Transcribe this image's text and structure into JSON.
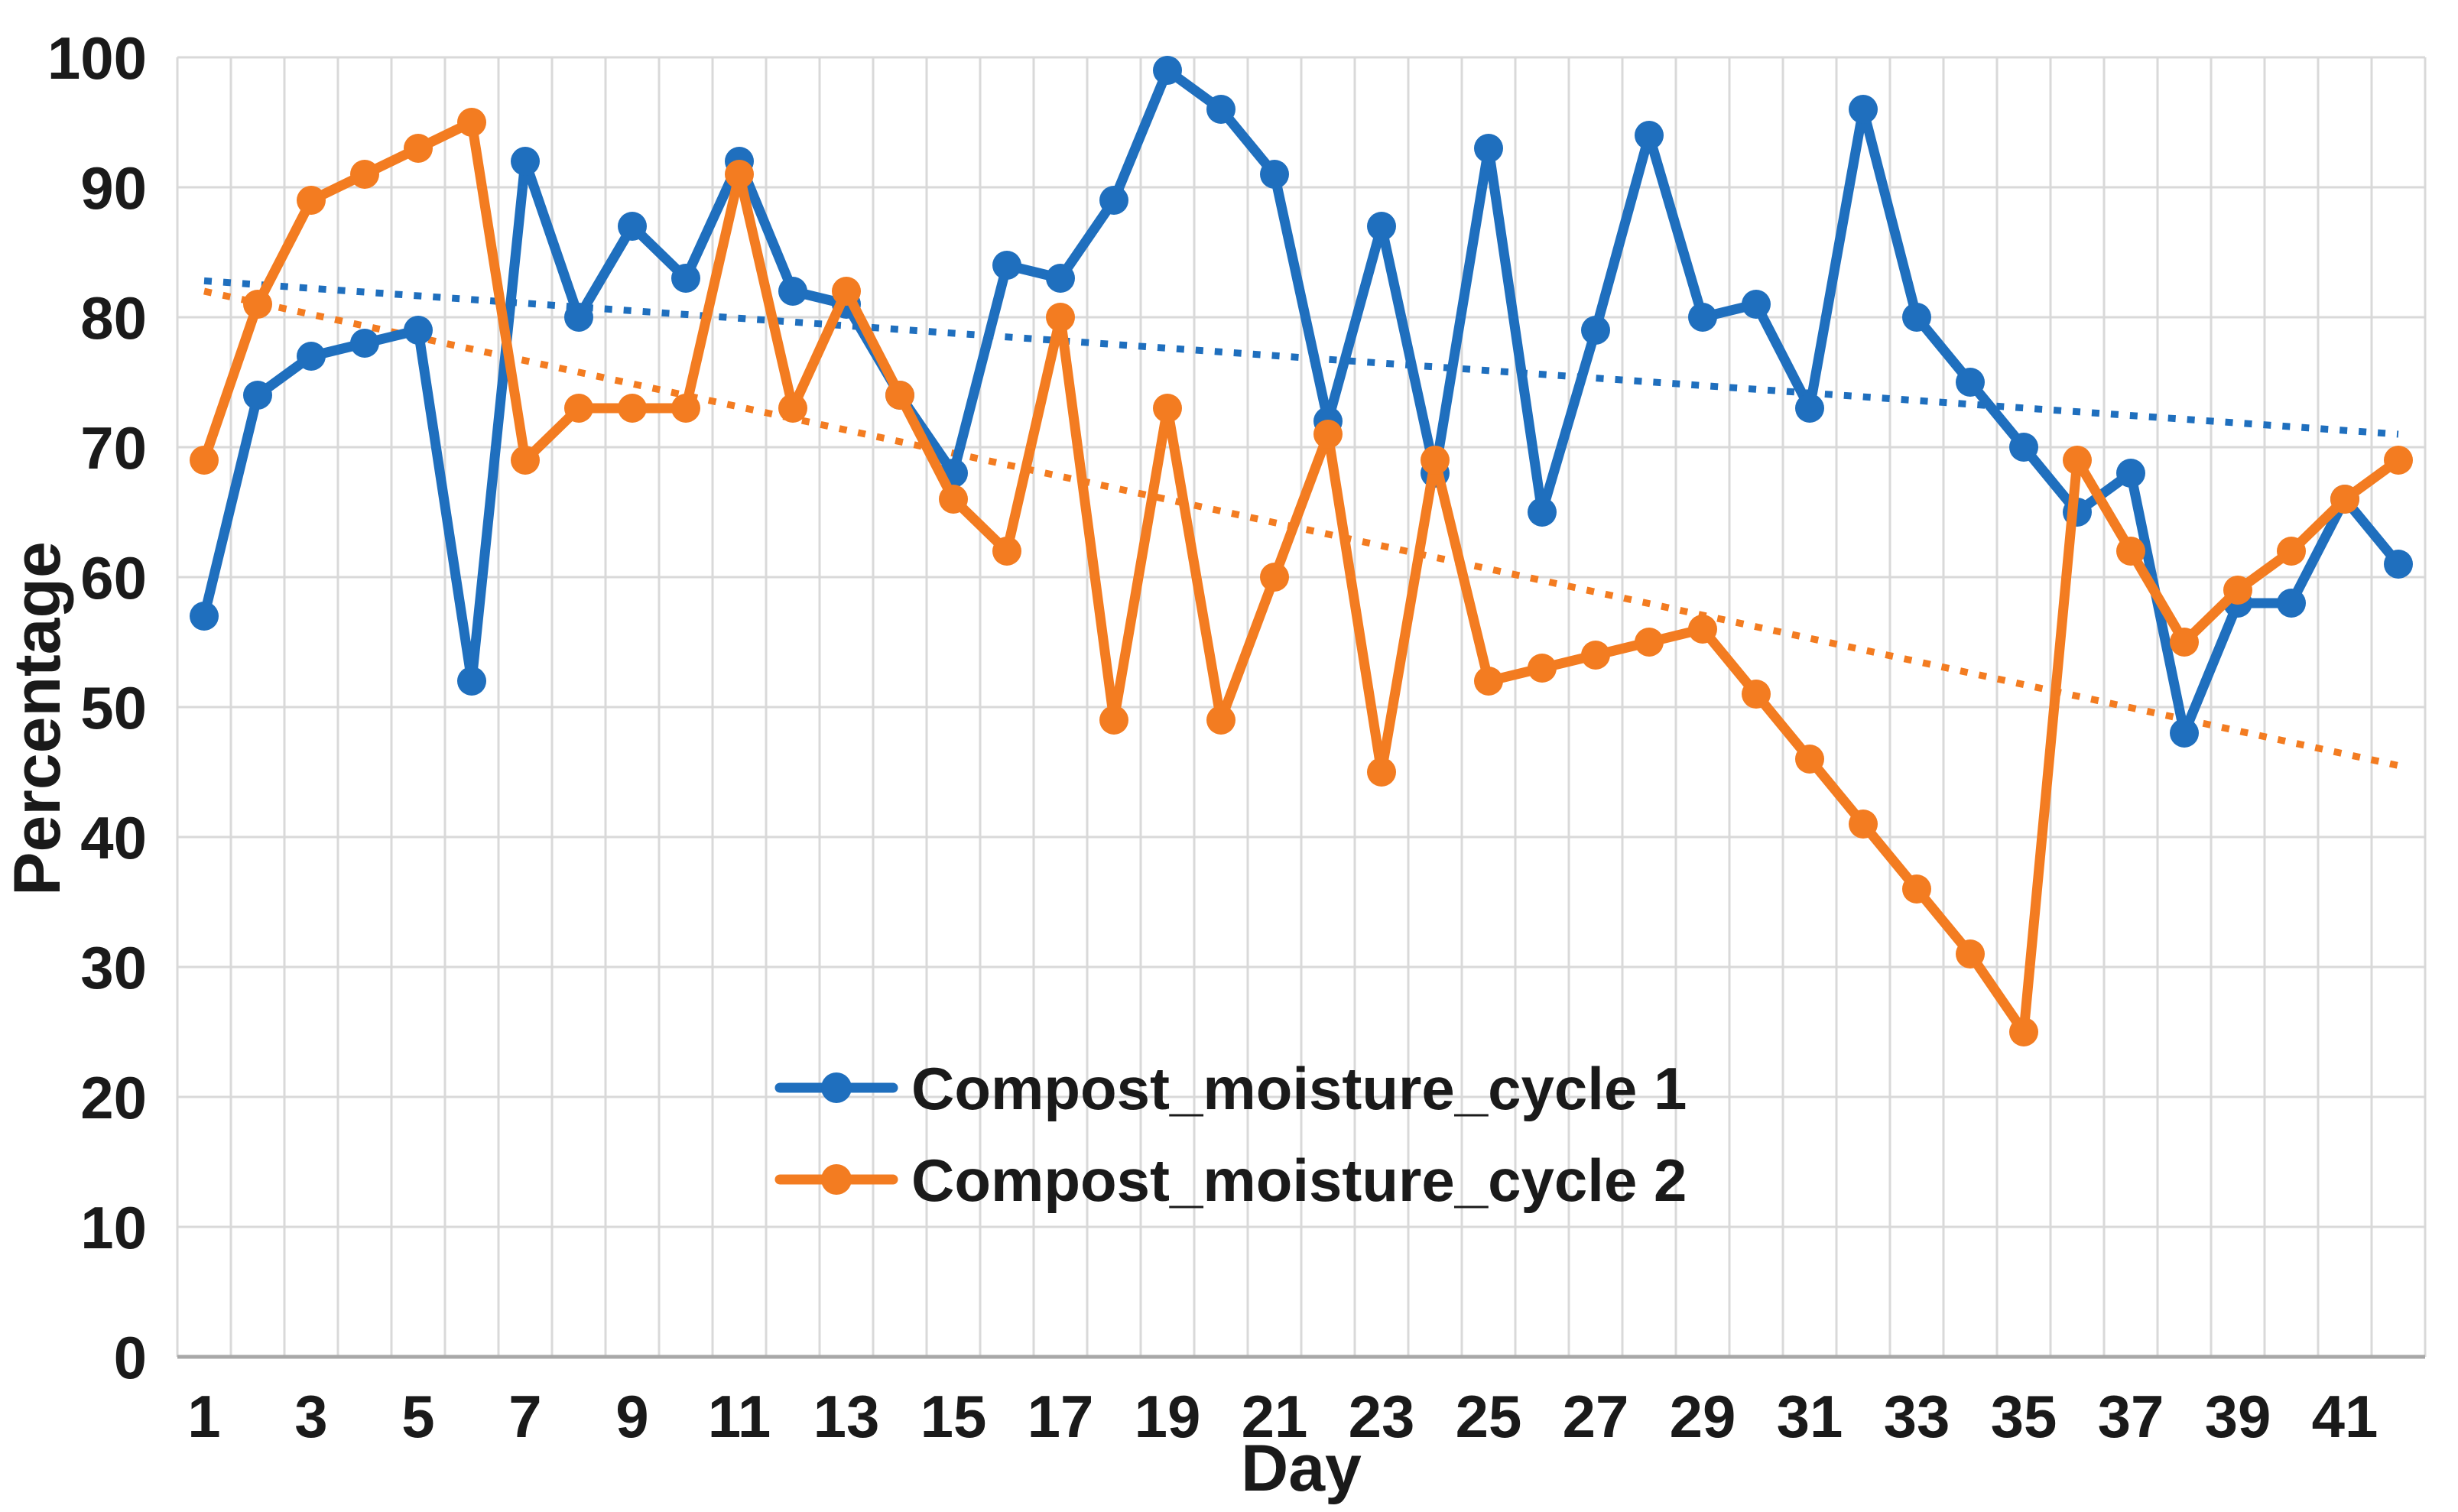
{
  "chart_data": {
    "type": "line",
    "title": "",
    "xlabel": "Day",
    "ylabel": "Percentage",
    "x": [
      1,
      2,
      3,
      4,
      5,
      6,
      7,
      8,
      9,
      10,
      11,
      12,
      13,
      14,
      15,
      16,
      17,
      18,
      19,
      20,
      21,
      22,
      23,
      24,
      25,
      26,
      27,
      28,
      29,
      30,
      31,
      32,
      33,
      34,
      35,
      36,
      37,
      38,
      39,
      40,
      41,
      42
    ],
    "x_tick_labels": [
      1,
      3,
      5,
      7,
      9,
      11,
      13,
      15,
      17,
      19,
      21,
      23,
      25,
      27,
      29,
      31,
      33,
      35,
      37,
      39,
      41
    ],
    "ylim": [
      0,
      100
    ],
    "y_ticks": [
      0,
      10,
      20,
      30,
      40,
      50,
      60,
      70,
      80,
      90,
      100
    ],
    "grid": true,
    "legend_position": "inside-center-left",
    "series": [
      {
        "name": "Compost_moisture_cycle 1",
        "color": "#1F6FBE",
        "marker": "circle",
        "values": [
          57,
          74,
          77,
          78,
          79,
          52,
          92,
          80,
          87,
          83,
          92,
          82,
          81,
          74,
          68,
          84,
          83,
          89,
          99,
          96,
          91,
          72,
          87,
          68,
          93,
          65,
          79,
          94,
          80,
          81,
          73,
          96,
          80,
          75,
          70,
          65,
          68,
          48,
          58,
          58,
          66,
          61
        ]
      },
      {
        "name": "Compost_moisture_cycle 2",
        "color": "#F37C21",
        "marker": "circle",
        "values": [
          69,
          81,
          89,
          91,
          93,
          95,
          69,
          73,
          73,
          73,
          91,
          73,
          82,
          74,
          66,
          62,
          80,
          49,
          73,
          49,
          60,
          71,
          45,
          69,
          52,
          53,
          54,
          55,
          56,
          51,
          46,
          41,
          36,
          31,
          25,
          69,
          62,
          55,
          59,
          62,
          66,
          69
        ]
      }
    ],
    "trendlines": [
      {
        "series": "Compost_moisture_cycle 1",
        "color": "#1F6FBE",
        "style": "dotted",
        "start_day": 1,
        "start_value": 82.8,
        "end_day": 42,
        "end_value": 71.0
      },
      {
        "series": "Compost_moisture_cycle 2",
        "color": "#F37C21",
        "style": "dotted",
        "start_day": 1,
        "start_value": 82.0,
        "end_day": 42,
        "end_value": 45.5
      }
    ]
  },
  "colors": {
    "gridline": "#D9D9D9",
    "axis_line": "#A8A8A8",
    "text": "#1a1a1a",
    "background": "#ffffff"
  }
}
